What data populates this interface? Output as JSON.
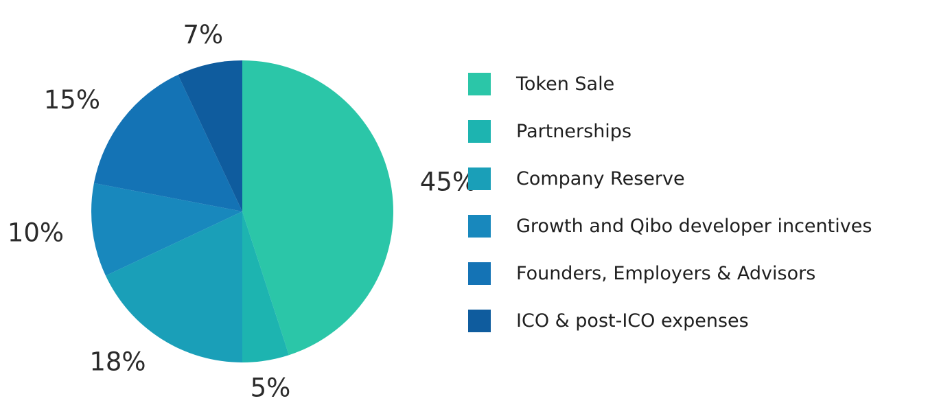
{
  "chart_data": {
    "type": "pie",
    "start_angle_deg": 0,
    "direction": "clockwise",
    "legend_position": "right",
    "slices": [
      {
        "label": "Token Sale",
        "value": 45,
        "value_label": "45%",
        "color": "#2bc6a8"
      },
      {
        "label": "Partnerships",
        "value": 5,
        "value_label": "5%",
        "color": "#1db4b0"
      },
      {
        "label": "Company Reserve",
        "value": 18,
        "value_label": "18%",
        "color": "#1a9fb8"
      },
      {
        "label": "Growth and Qibo developer incentives",
        "value": 10,
        "value_label": "10%",
        "color": "#1888bd"
      },
      {
        "label": "Founders, Employers & Advisors",
        "value": 15,
        "value_label": "15%",
        "color": "#1473b5"
      },
      {
        "label": "ICO & post-ICO expenses",
        "value": 7,
        "value_label": "7%",
        "color": "#0f5c9e"
      }
    ]
  }
}
